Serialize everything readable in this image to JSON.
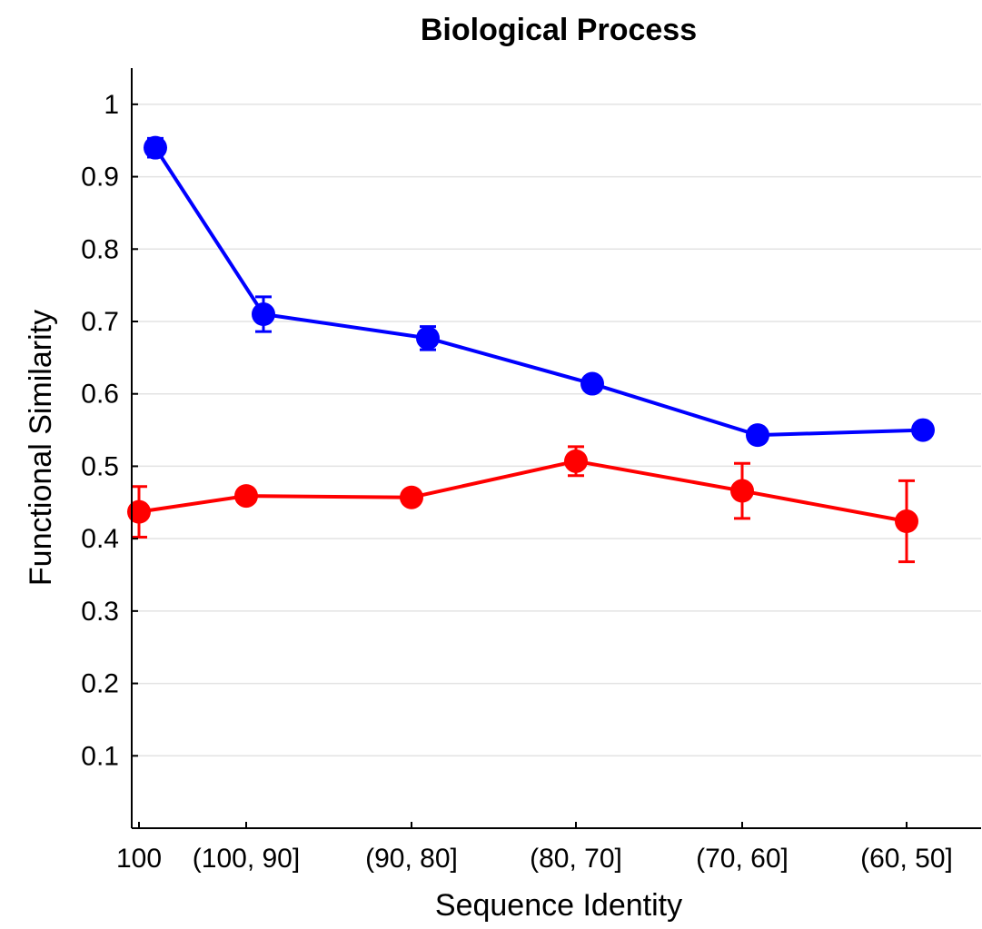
{
  "chart_data": {
    "type": "line",
    "title": "Biological Process",
    "xlabel": "Sequence Identity",
    "ylabel": "Functional Similarity",
    "categories": [
      "100",
      "(100, 90]",
      "(90, 80]",
      "(80, 70]",
      "(70, 60]",
      "(60, 50]"
    ],
    "yticks": [
      "0.1",
      "0.2",
      "0.3",
      "0.4",
      "0.5",
      "0.6",
      "0.7",
      "0.8",
      "0.9",
      "1"
    ],
    "ylim": [
      0,
      1.05
    ],
    "grid": "horizontal",
    "series": [
      {
        "color": "#0000ff",
        "points": [
          {
            "category": "100",
            "y": 0.94,
            "err": 0.013
          },
          {
            "category": "(100, 90]",
            "y": 0.71,
            "err": 0.024
          },
          {
            "category": "(90, 80]",
            "y": 0.677,
            "err": 0.016
          },
          {
            "category": "(80, 70]",
            "y": 0.614,
            "err": 0.01
          },
          {
            "category": "(70, 60]",
            "y": 0.543,
            "err": 0.008
          },
          {
            "category": "(60, 50]",
            "y": 0.55,
            "err": 0.008
          }
        ]
      },
      {
        "color": "#ff0000",
        "points": [
          {
            "category": "100",
            "y": 0.437,
            "err": 0.035
          },
          {
            "category": "(100, 90]",
            "y": 0.459,
            "err": 0.008
          },
          {
            "category": "(90, 80]",
            "y": 0.457,
            "err": 0.008
          },
          {
            "category": "(80, 70]",
            "y": 0.507,
            "err": 0.02
          },
          {
            "category": "(70, 60]",
            "y": 0.466,
            "err": 0.038
          },
          {
            "category": "(60, 50]",
            "y": 0.424,
            "err": 0.056
          }
        ]
      }
    ]
  }
}
